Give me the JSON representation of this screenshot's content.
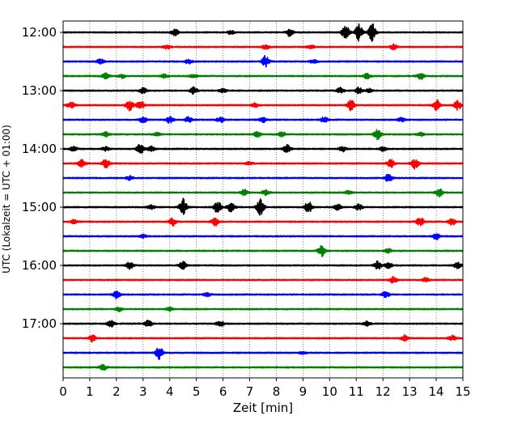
{
  "chart_data": {
    "type": "line",
    "title": "",
    "xlabel": "Zeit  [min]",
    "ylabel": "UTC (Lokalzeit = UTC + 01:00)",
    "xlim": [
      0,
      15
    ],
    "x_ticks": [
      0,
      1,
      2,
      3,
      4,
      5,
      6,
      7,
      8,
      9,
      10,
      11,
      12,
      13,
      14,
      15
    ],
    "x_tick_labels": [
      "0",
      "1",
      "2",
      "3",
      "4",
      "5",
      "6",
      "7",
      "8",
      "9",
      "10",
      "11",
      "12",
      "13",
      "14",
      "15"
    ],
    "y_tick_labels": [
      "12:00",
      "13:00",
      "14:00",
      "15:00",
      "16:00",
      "17:00"
    ],
    "y_tick_rows": [
      0,
      4,
      8,
      12,
      16,
      20
    ],
    "row_minutes": 15,
    "grid": "vertical dotted at each minute",
    "row_colors": [
      "#000000",
      "#ff0000",
      "#0000ff",
      "#008000"
    ],
    "rows": [
      {
        "start": "12:00",
        "events": [
          [
            4.2,
            0.5
          ],
          [
            6.3,
            0.3
          ],
          [
            8.5,
            0.55
          ],
          [
            10.6,
            1.2
          ],
          [
            11.1,
            1.3
          ],
          [
            11.6,
            1.4
          ]
        ]
      },
      {
        "start": "12:15",
        "events": [
          [
            3.9,
            0.3
          ],
          [
            7.6,
            0.35
          ],
          [
            9.3,
            0.25
          ],
          [
            12.4,
            0.4
          ]
        ]
      },
      {
        "start": "12:30",
        "events": [
          [
            1.4,
            0.45
          ],
          [
            4.7,
            0.35
          ],
          [
            7.6,
            0.9
          ],
          [
            9.4,
            0.25
          ]
        ]
      },
      {
        "start": "12:45",
        "events": [
          [
            1.6,
            0.45
          ],
          [
            2.2,
            0.3
          ],
          [
            3.8,
            0.3
          ],
          [
            4.9,
            0.3
          ],
          [
            11.4,
            0.4
          ],
          [
            13.4,
            0.5
          ]
        ]
      },
      {
        "start": "13:00",
        "events": [
          [
            3.0,
            0.45
          ],
          [
            4.9,
            0.5
          ],
          [
            6.0,
            0.3
          ],
          [
            10.4,
            0.45
          ],
          [
            11.1,
            0.5
          ],
          [
            11.5,
            0.3
          ]
        ]
      },
      {
        "start": "13:15",
        "events": [
          [
            0.3,
            0.5
          ],
          [
            2.5,
            0.8
          ],
          [
            2.9,
            0.7
          ],
          [
            7.2,
            0.3
          ],
          [
            10.8,
            0.8
          ],
          [
            14.0,
            0.8
          ],
          [
            14.8,
            0.7
          ]
        ]
      },
      {
        "start": "13:30",
        "events": [
          [
            3.0,
            0.45
          ],
          [
            4.0,
            0.5
          ],
          [
            4.7,
            0.45
          ],
          [
            5.9,
            0.4
          ],
          [
            7.5,
            0.4
          ],
          [
            9.8,
            0.45
          ],
          [
            12.7,
            0.3
          ]
        ]
      },
      {
        "start": "13:45",
        "events": [
          [
            1.6,
            0.35
          ],
          [
            3.5,
            0.3
          ],
          [
            7.3,
            0.45
          ],
          [
            8.2,
            0.45
          ],
          [
            11.8,
            0.8
          ],
          [
            13.4,
            0.3
          ]
        ]
      },
      {
        "start": "14:00",
        "events": [
          [
            0.4,
            0.4
          ],
          [
            1.6,
            0.3
          ],
          [
            2.9,
            0.8
          ],
          [
            3.3,
            0.4
          ],
          [
            8.4,
            0.6
          ],
          [
            10.5,
            0.45
          ],
          [
            12.0,
            0.3
          ]
        ]
      },
      {
        "start": "14:15",
        "events": [
          [
            0.7,
            0.6
          ],
          [
            1.6,
            0.7
          ],
          [
            7.0,
            0.25
          ],
          [
            12.3,
            0.6
          ],
          [
            13.2,
            0.8
          ]
        ]
      },
      {
        "start": "14:30",
        "events": [
          [
            2.5,
            0.3
          ],
          [
            12.2,
            0.6
          ]
        ]
      },
      {
        "start": "14:45",
        "events": [
          [
            6.8,
            0.45
          ],
          [
            7.6,
            0.35
          ],
          [
            10.7,
            0.25
          ],
          [
            14.1,
            0.6
          ]
        ]
      },
      {
        "start": "15:00",
        "events": [
          [
            3.3,
            0.3
          ],
          [
            4.5,
            1.3
          ],
          [
            5.8,
            1.0
          ],
          [
            6.3,
            0.9
          ],
          [
            7.4,
            1.3
          ],
          [
            9.2,
            0.9
          ],
          [
            10.3,
            0.45
          ],
          [
            11.1,
            0.45
          ]
        ]
      },
      {
        "start": "15:15",
        "events": [
          [
            0.4,
            0.3
          ],
          [
            4.1,
            0.6
          ],
          [
            5.7,
            0.6
          ],
          [
            13.4,
            0.7
          ],
          [
            14.6,
            0.5
          ]
        ]
      },
      {
        "start": "15:30",
        "events": [
          [
            3.0,
            0.25
          ],
          [
            14.0,
            0.5
          ]
        ]
      },
      {
        "start": "15:45",
        "events": [
          [
            9.7,
            0.9
          ],
          [
            12.2,
            0.3
          ]
        ]
      },
      {
        "start": "16:00",
        "events": [
          [
            2.5,
            0.6
          ],
          [
            4.5,
            0.7
          ],
          [
            11.8,
            0.7
          ],
          [
            12.2,
            0.5
          ],
          [
            14.8,
            0.5
          ]
        ]
      },
      {
        "start": "16:15",
        "events": [
          [
            12.4,
            0.55
          ],
          [
            13.6,
            0.3
          ]
        ]
      },
      {
        "start": "16:30",
        "events": [
          [
            2.0,
            0.6
          ],
          [
            5.4,
            0.3
          ],
          [
            12.1,
            0.45
          ]
        ]
      },
      {
        "start": "16:45",
        "events": [
          [
            2.1,
            0.3
          ],
          [
            4.0,
            0.3
          ]
        ]
      },
      {
        "start": "17:00",
        "events": [
          [
            1.8,
            0.5
          ],
          [
            3.2,
            0.5
          ],
          [
            5.9,
            0.45
          ],
          [
            11.4,
            0.3
          ]
        ]
      },
      {
        "start": "17:15",
        "events": [
          [
            1.1,
            0.5
          ],
          [
            12.8,
            0.45
          ],
          [
            14.6,
            0.4
          ]
        ]
      },
      {
        "start": "17:30",
        "events": [
          [
            3.6,
            1.0
          ],
          [
            9.0,
            0.2
          ]
        ]
      },
      {
        "start": "17:45",
        "events": [
          [
            1.5,
            0.45
          ]
        ]
      }
    ]
  }
}
